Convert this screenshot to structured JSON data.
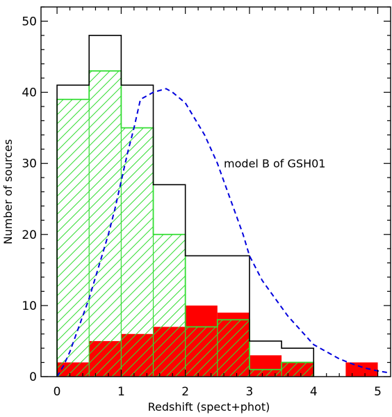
{
  "chart_data": {
    "type": "histogram",
    "xlabel": "Redshift (spect+phot)",
    "ylabel": "Number of sources",
    "xlim": [
      -0.25,
      5.2
    ],
    "ylim": [
      0,
      52
    ],
    "xticks": [
      "0",
      "1",
      "2",
      "3",
      "4",
      "5"
    ],
    "yticks": [
      "0",
      "10",
      "20",
      "30",
      "40",
      "50"
    ],
    "bin_edges": [
      0,
      0.5,
      1,
      1.5,
      2,
      2.5,
      3,
      3.5,
      4,
      4.5,
      5
    ],
    "colors": {
      "total": "#000000",
      "hatched": "#33dd33",
      "filled": "#ff0000",
      "model": "#0000dd"
    },
    "series": [
      {
        "style": "outline",
        "values": [
          41,
          48,
          41,
          27,
          17,
          17,
          5,
          4,
          0,
          0
        ]
      },
      {
        "style": "hatched",
        "values": [
          39,
          43,
          35,
          20,
          7,
          8,
          1,
          2,
          0,
          0
        ]
      },
      {
        "style": "filled",
        "values": [
          2,
          5,
          6,
          7,
          10,
          9,
          3,
          2,
          0,
          2
        ]
      },
      {
        "style": "dashed",
        "x": [
          0.0,
          0.1,
          0.2,
          0.3,
          0.4,
          0.5,
          0.6,
          0.7,
          0.8,
          0.9,
          1.0,
          1.1,
          1.2,
          1.3,
          1.5,
          1.7,
          1.8,
          2.0,
          2.3,
          2.5,
          2.7,
          2.9,
          3.0,
          3.2,
          3.4,
          3.6,
          3.8,
          4.0,
          4.2,
          4.4,
          4.6,
          4.8,
          5.0,
          5.2
        ],
        "y": [
          0.0,
          1.5,
          3.5,
          6.0,
          8.5,
          11.0,
          14.0,
          17.0,
          20.0,
          23.5,
          27.5,
          31.5,
          35.0,
          39.0,
          40.0,
          40.5,
          40.0,
          38.5,
          34.0,
          30.0,
          25.0,
          20.0,
          17.0,
          13.5,
          11.0,
          8.5,
          6.5,
          4.5,
          3.5,
          2.5,
          1.8,
          1.2,
          0.8,
          0.5
        ]
      }
    ],
    "annotations": [
      {
        "text": "model B of GSH01",
        "x": 2.6,
        "y": 30
      }
    ]
  }
}
